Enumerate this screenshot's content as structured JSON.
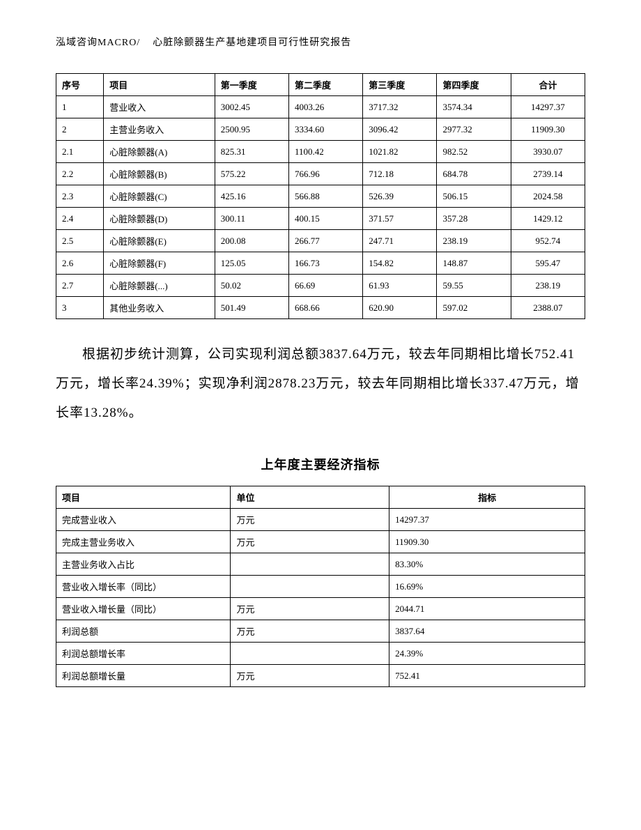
{
  "header": {
    "company": "泓域咨询MACRO/",
    "title": "心脏除颤器生产基地建项目可行性研究报告"
  },
  "table1": {
    "columns": [
      "序号",
      "项目",
      "第一季度",
      "第二季度",
      "第三季度",
      "第四季度",
      "合计"
    ],
    "rows": [
      [
        "1",
        "营业收入",
        "3002.45",
        "4003.26",
        "3717.32",
        "3574.34",
        "14297.37"
      ],
      [
        "2",
        "主营业务收入",
        "2500.95",
        "3334.60",
        "3096.42",
        "2977.32",
        "11909.30"
      ],
      [
        "2.1",
        "心脏除颤器(A)",
        "825.31",
        "1100.42",
        "1021.82",
        "982.52",
        "3930.07"
      ],
      [
        "2.2",
        "心脏除颤器(B)",
        "575.22",
        "766.96",
        "712.18",
        "684.78",
        "2739.14"
      ],
      [
        "2.3",
        "心脏除颤器(C)",
        "425.16",
        "566.88",
        "526.39",
        "506.15",
        "2024.58"
      ],
      [
        "2.4",
        "心脏除颤器(D)",
        "300.11",
        "400.15",
        "371.57",
        "357.28",
        "1429.12"
      ],
      [
        "2.5",
        "心脏除颤器(E)",
        "200.08",
        "266.77",
        "247.71",
        "238.19",
        "952.74"
      ],
      [
        "2.6",
        "心脏除颤器(F)",
        "125.05",
        "166.73",
        "154.82",
        "148.87",
        "595.47"
      ],
      [
        "2.7",
        "心脏除颤器(...)",
        "50.02",
        "66.69",
        "61.93",
        "59.55",
        "238.19"
      ],
      [
        "3",
        "其他业务收入",
        "501.49",
        "668.66",
        "620.90",
        "597.02",
        "2388.07"
      ]
    ]
  },
  "body_text": "根据初步统计测算，公司实现利润总额3837.64万元，较去年同期相比增长752.41万元，增长率24.39%；实现净利润2878.23万元，较去年同期相比增长337.47万元，增长率13.28%。",
  "subtitle": "上年度主要经济指标",
  "table2": {
    "columns": [
      "项目",
      "单位",
      "指标"
    ],
    "rows": [
      [
        "完成营业收入",
        "万元",
        "14297.37"
      ],
      [
        "完成主营业务收入",
        "万元",
        "11909.30"
      ],
      [
        "主营业务收入占比",
        "",
        "83.30%"
      ],
      [
        "营业收入增长率（同比）",
        "",
        "16.69%"
      ],
      [
        "营业收入增长量（同比）",
        "万元",
        "2044.71"
      ],
      [
        "利润总额",
        "万元",
        "3837.64"
      ],
      [
        "利润总额增长率",
        "",
        "24.39%"
      ],
      [
        "利润总额增长量",
        "万元",
        "752.41"
      ]
    ]
  },
  "styles": {
    "background_color": "#ffffff",
    "text_color": "#000000",
    "border_color": "#000000",
    "body_fontsize": 14,
    "header_fontsize": 14,
    "table_fontsize": 13,
    "bodytext_fontsize": 19,
    "subtitle_fontsize": 18,
    "font_family": "SimSun"
  }
}
